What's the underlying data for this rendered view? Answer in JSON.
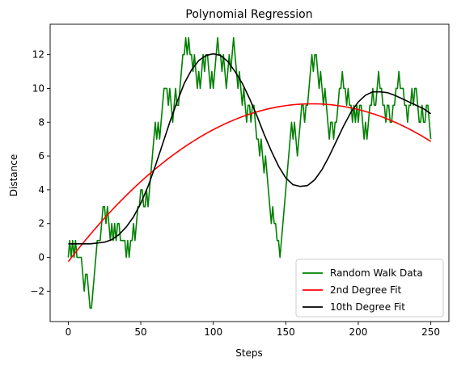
{
  "chart_data": {
    "type": "line",
    "title": "Polynomial Regression",
    "xlabel": "Steps",
    "ylabel": "Distance",
    "xlim": [
      -12.5,
      262.5
    ],
    "ylim": [
      -3.8,
      13.8
    ],
    "xticks": [
      0,
      50,
      100,
      150,
      200,
      250
    ],
    "yticks": [
      -2,
      0,
      2,
      4,
      6,
      8,
      10,
      12
    ],
    "grid": false,
    "legend_position": "lower right",
    "series": [
      {
        "name": "Random Walk Data",
        "color": "#008000",
        "points": [
          [
            0,
            0
          ],
          [
            1,
            1
          ],
          [
            2,
            0
          ],
          [
            3,
            1
          ],
          [
            4,
            0
          ],
          [
            5,
            1
          ],
          [
            6,
            0
          ],
          [
            7,
            0
          ],
          [
            8,
            0
          ],
          [
            9,
            0
          ],
          [
            10,
            -1
          ],
          [
            11,
            -2
          ],
          [
            12,
            -1
          ],
          [
            13,
            -1
          ],
          [
            14,
            -2
          ],
          [
            15,
            -3
          ],
          [
            16,
            -3
          ],
          [
            17,
            -2
          ],
          [
            18,
            -1
          ],
          [
            19,
            0
          ],
          [
            20,
            1
          ],
          [
            21,
            1
          ],
          [
            22,
            1
          ],
          [
            23,
            2
          ],
          [
            24,
            3
          ],
          [
            25,
            3
          ],
          [
            26,
            2
          ],
          [
            27,
            3
          ],
          [
            28,
            2
          ],
          [
            29,
            1
          ],
          [
            30,
            2
          ],
          [
            31,
            1
          ],
          [
            32,
            2
          ],
          [
            33,
            1
          ],
          [
            34,
            2
          ],
          [
            35,
            2
          ],
          [
            36,
            1
          ],
          [
            37,
            1
          ],
          [
            38,
            1
          ],
          [
            39,
            1
          ],
          [
            40,
            0
          ],
          [
            41,
            1
          ],
          [
            42,
            0
          ],
          [
            43,
            1
          ],
          [
            44,
            1
          ],
          [
            45,
            2
          ],
          [
            46,
            1
          ],
          [
            47,
            2
          ],
          [
            48,
            3
          ],
          [
            49,
            3
          ],
          [
            50,
            4
          ],
          [
            51,
            4
          ],
          [
            52,
            3
          ],
          [
            53,
            3
          ],
          [
            54,
            4
          ],
          [
            55,
            3
          ],
          [
            56,
            4
          ],
          [
            57,
            5
          ],
          [
            58,
            6
          ],
          [
            59,
            7
          ],
          [
            60,
            8
          ],
          [
            61,
            7
          ],
          [
            62,
            8
          ],
          [
            63,
            7
          ],
          [
            64,
            8
          ],
          [
            65,
            9
          ],
          [
            66,
            10
          ],
          [
            67,
            10
          ],
          [
            68,
            10
          ],
          [
            69,
            9
          ],
          [
            70,
            10
          ],
          [
            71,
            9
          ],
          [
            72,
            8
          ],
          [
            73,
            9
          ],
          [
            74,
            10
          ],
          [
            75,
            9
          ],
          [
            76,
            9
          ],
          [
            77,
            10
          ],
          [
            78,
            11
          ],
          [
            79,
            12
          ],
          [
            80,
            12
          ],
          [
            81,
            13
          ],
          [
            82,
            12
          ],
          [
            83,
            13
          ],
          [
            84,
            12
          ],
          [
            85,
            12
          ],
          [
            86,
            11
          ],
          [
            87,
            12
          ],
          [
            88,
            11
          ],
          [
            89,
            10
          ],
          [
            90,
            11
          ],
          [
            91,
            10
          ],
          [
            92,
            11
          ],
          [
            93,
            12
          ],
          [
            94,
            11
          ],
          [
            95,
            12
          ],
          [
            96,
            12
          ],
          [
            97,
            11
          ],
          [
            98,
            10
          ],
          [
            99,
            11
          ],
          [
            100,
            10
          ],
          [
            101,
            11
          ],
          [
            102,
            12
          ],
          [
            103,
            13
          ],
          [
            104,
            12
          ],
          [
            105,
            12
          ],
          [
            106,
            11
          ],
          [
            107,
            12
          ],
          [
            108,
            11
          ],
          [
            109,
            10
          ],
          [
            110,
            11
          ],
          [
            111,
            12
          ],
          [
            112,
            11
          ],
          [
            113,
            12
          ],
          [
            114,
            13
          ],
          [
            115,
            12
          ],
          [
            116,
            11
          ],
          [
            117,
            10
          ],
          [
            118,
            11
          ],
          [
            119,
            10
          ],
          [
            120,
            9
          ],
          [
            121,
            10
          ],
          [
            122,
            9
          ],
          [
            123,
            8
          ],
          [
            124,
            9
          ],
          [
            125,
            9
          ],
          [
            126,
            8
          ],
          [
            127,
            9
          ],
          [
            128,
            9
          ],
          [
            129,
            8
          ],
          [
            130,
            7
          ],
          [
            131,
            7
          ],
          [
            132,
            6
          ],
          [
            133,
            7
          ],
          [
            134,
            6
          ],
          [
            135,
            5
          ],
          [
            136,
            6
          ],
          [
            137,
            5
          ],
          [
            138,
            4
          ],
          [
            139,
            3
          ],
          [
            140,
            2
          ],
          [
            141,
            3
          ],
          [
            142,
            2
          ],
          [
            143,
            2
          ],
          [
            144,
            1
          ],
          [
            145,
            1
          ],
          [
            146,
            0
          ],
          [
            147,
            1
          ],
          [
            148,
            2
          ],
          [
            149,
            3
          ],
          [
            150,
            4
          ],
          [
            151,
            5
          ],
          [
            152,
            6
          ],
          [
            153,
            7
          ],
          [
            154,
            8
          ],
          [
            155,
            7
          ],
          [
            156,
            8
          ],
          [
            157,
            7
          ],
          [
            158,
            6
          ],
          [
            159,
            7
          ],
          [
            160,
            8
          ],
          [
            161,
            9
          ],
          [
            162,
            9
          ],
          [
            163,
            8
          ],
          [
            164,
            9
          ],
          [
            165,
            9
          ],
          [
            166,
            10
          ],
          [
            167,
            11
          ],
          [
            168,
            12
          ],
          [
            169,
            11
          ],
          [
            170,
            12
          ],
          [
            171,
            12
          ],
          [
            172,
            11
          ],
          [
            173,
            10
          ],
          [
            174,
            11
          ],
          [
            175,
            10
          ],
          [
            176,
            9
          ],
          [
            177,
            10
          ],
          [
            178,
            9
          ],
          [
            179,
            8
          ],
          [
            180,
            7
          ],
          [
            181,
            8
          ],
          [
            182,
            8
          ],
          [
            183,
            7
          ],
          [
            184,
            8
          ],
          [
            185,
            8
          ],
          [
            186,
            9
          ],
          [
            187,
            10
          ],
          [
            188,
            10
          ],
          [
            189,
            11
          ],
          [
            190,
            10
          ],
          [
            191,
            10
          ],
          [
            192,
            9
          ],
          [
            193,
            10
          ],
          [
            194,
            9
          ],
          [
            195,
            9
          ],
          [
            196,
            8
          ],
          [
            197,
            9
          ],
          [
            198,
            8
          ],
          [
            199,
            9
          ],
          [
            200,
            8
          ],
          [
            201,
            9
          ],
          [
            202,
            9
          ],
          [
            203,
            8
          ],
          [
            204,
            7
          ],
          [
            205,
            8
          ],
          [
            206,
            7
          ],
          [
            207,
            8
          ],
          [
            208,
            9
          ],
          [
            209,
            9
          ],
          [
            210,
            10
          ],
          [
            211,
            9
          ],
          [
            212,
            9
          ],
          [
            213,
            10
          ],
          [
            214,
            11
          ],
          [
            215,
            10
          ],
          [
            216,
            10
          ],
          [
            217,
            9
          ],
          [
            218,
            9
          ],
          [
            219,
            8
          ],
          [
            220,
            9
          ],
          [
            221,
            9
          ],
          [
            222,
            8
          ],
          [
            223,
            8
          ],
          [
            224,
            9
          ],
          [
            225,
            9
          ],
          [
            226,
            10
          ],
          [
            227,
            10
          ],
          [
            228,
            11
          ],
          [
            229,
            10
          ],
          [
            230,
            10
          ],
          [
            231,
            10
          ],
          [
            232,
            9
          ],
          [
            233,
            9
          ],
          [
            234,
            8
          ],
          [
            235,
            9
          ],
          [
            236,
            9
          ],
          [
            237,
            10
          ],
          [
            238,
            9
          ],
          [
            239,
            10
          ],
          [
            240,
            10
          ],
          [
            241,
            9
          ],
          [
            242,
            8
          ],
          [
            243,
            8
          ],
          [
            244,
            9
          ],
          [
            245,
            8
          ],
          [
            246,
            8
          ],
          [
            247,
            9
          ],
          [
            248,
            9
          ],
          [
            249,
            8
          ],
          [
            250,
            7
          ]
        ]
      },
      {
        "name": "2nd Degree Fit",
        "color": "#ff0000",
        "function": "quadratic",
        "coefficients": {
          "a": -0.000331,
          "b": 0.1112,
          "c": -0.25
        },
        "x_range": [
          0,
          250
        ]
      },
      {
        "name": "10th Degree Fit",
        "color": "#000000",
        "points": [
          [
            0,
            0.8
          ],
          [
            5,
            0.8
          ],
          [
            10,
            0.8
          ],
          [
            15,
            0.8
          ],
          [
            20,
            0.85
          ],
          [
            25,
            0.9
          ],
          [
            30,
            1.05
          ],
          [
            35,
            1.35
          ],
          [
            40,
            1.8
          ],
          [
            45,
            2.4
          ],
          [
            50,
            3.2
          ],
          [
            55,
            4.2
          ],
          [
            60,
            5.4
          ],
          [
            65,
            6.7
          ],
          [
            70,
            8.0
          ],
          [
            75,
            9.2
          ],
          [
            80,
            10.3
          ],
          [
            85,
            11.1
          ],
          [
            90,
            11.65
          ],
          [
            95,
            11.95
          ],
          [
            100,
            12.05
          ],
          [
            105,
            11.95
          ],
          [
            110,
            11.6
          ],
          [
            115,
            11.0
          ],
          [
            120,
            10.3
          ],
          [
            125,
            9.4
          ],
          [
            130,
            8.4
          ],
          [
            135,
            7.3
          ],
          [
            140,
            6.3
          ],
          [
            145,
            5.4
          ],
          [
            150,
            4.7
          ],
          [
            155,
            4.3
          ],
          [
            160,
            4.2
          ],
          [
            165,
            4.25
          ],
          [
            170,
            4.6
          ],
          [
            175,
            5.2
          ],
          [
            180,
            6.0
          ],
          [
            185,
            6.9
          ],
          [
            190,
            7.8
          ],
          [
            195,
            8.6
          ],
          [
            200,
            9.2
          ],
          [
            205,
            9.6
          ],
          [
            210,
            9.8
          ],
          [
            215,
            9.8
          ],
          [
            220,
            9.75
          ],
          [
            225,
            9.6
          ],
          [
            230,
            9.4
          ],
          [
            235,
            9.2
          ],
          [
            240,
            9.0
          ],
          [
            245,
            8.8
          ],
          [
            250,
            8.5
          ]
        ]
      }
    ]
  }
}
